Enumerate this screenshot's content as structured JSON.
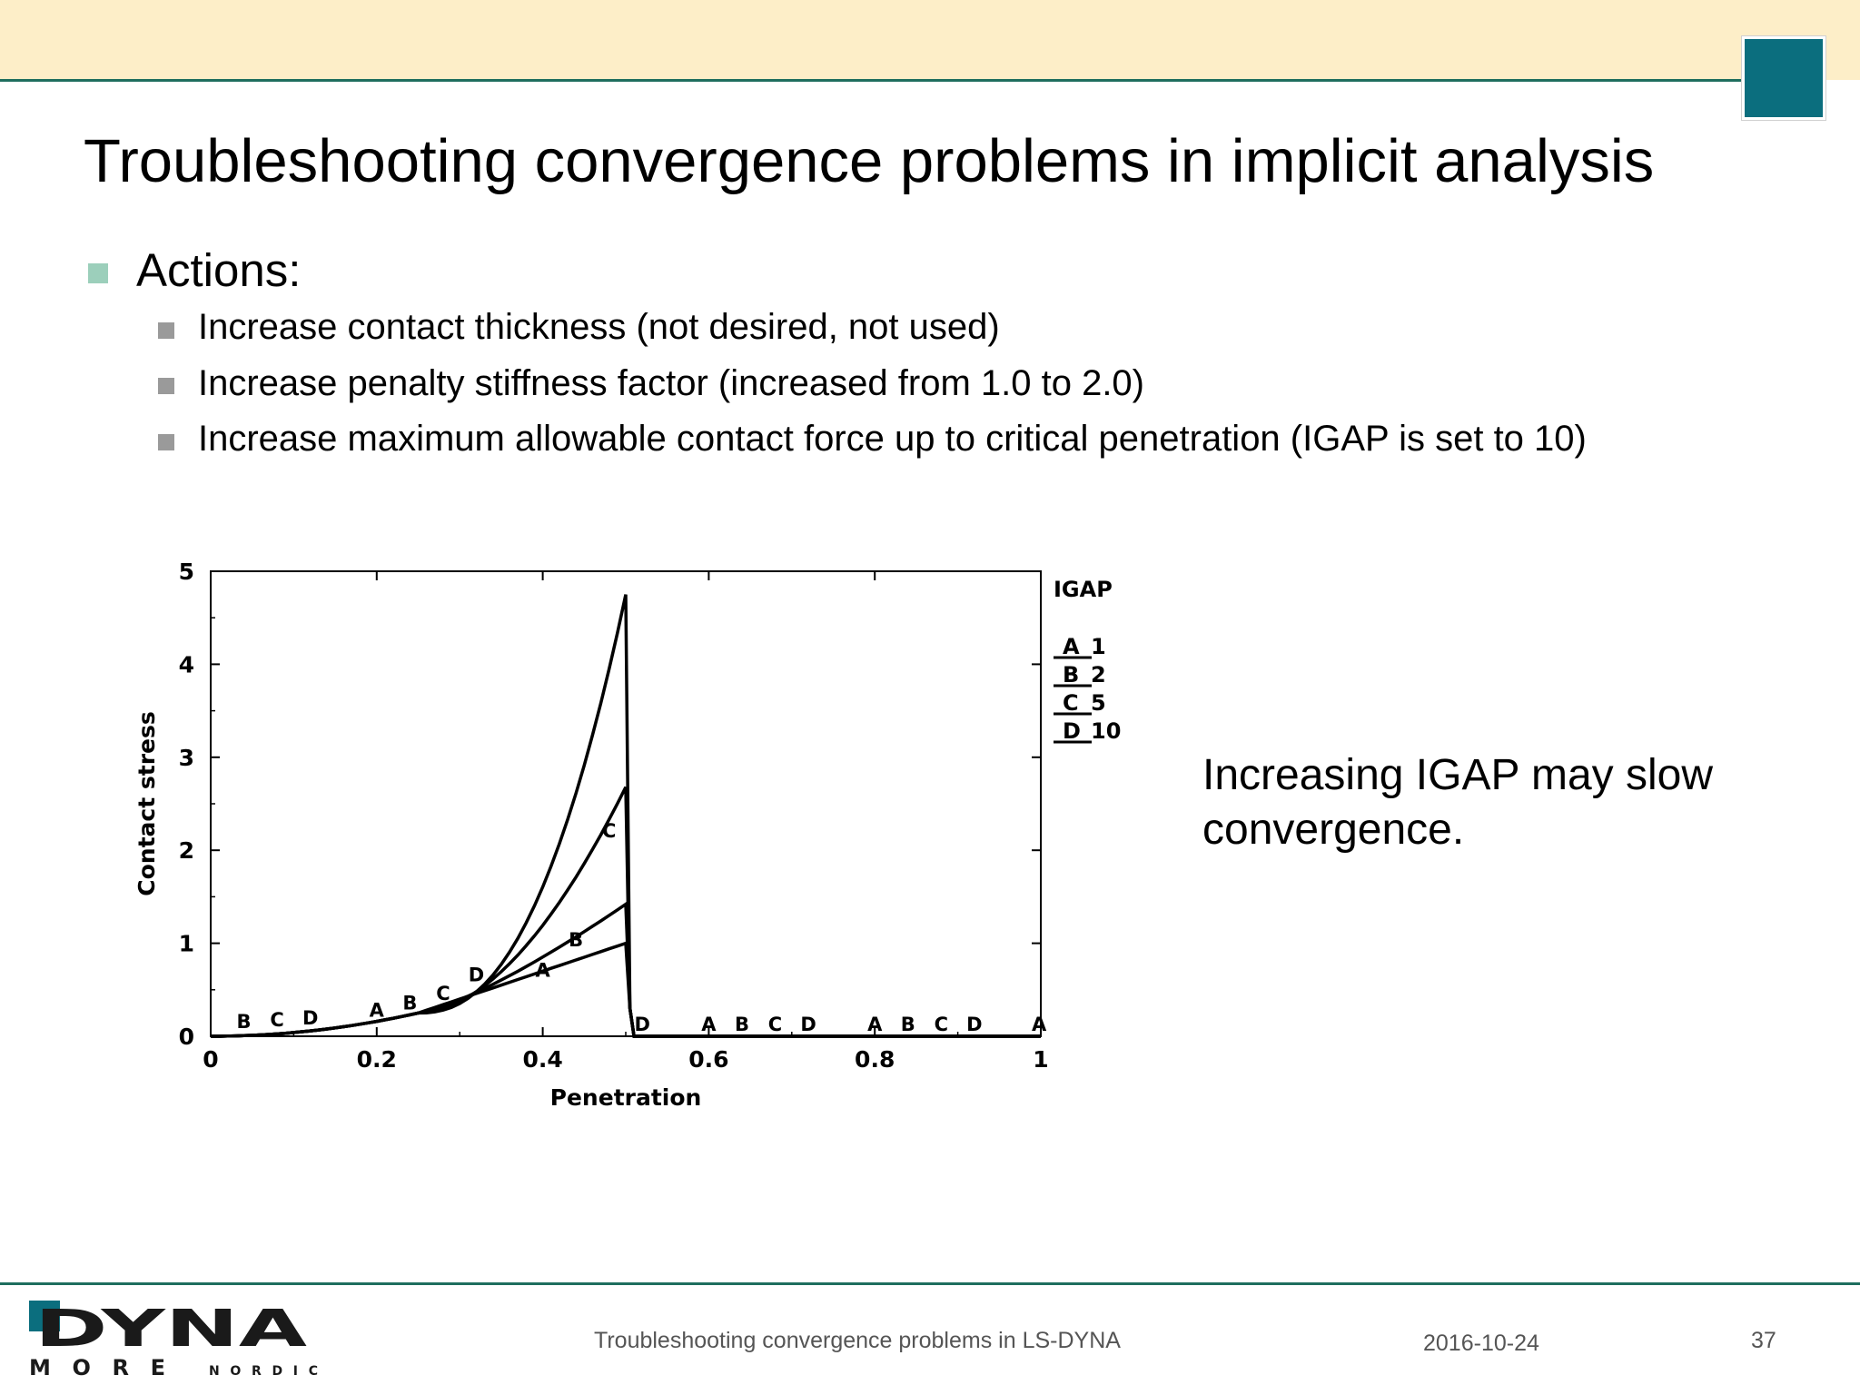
{
  "slide": {
    "title": "Troubleshooting convergence problems in implicit analysis",
    "bullet": "Actions:",
    "subbullets": [
      "Increase contact thickness (not desired, not used)",
      "Increase penalty stiffness factor (increased from 1.0 to 2.0)",
      "Increase maximum allowable contact force up to critical penetration (IGAP is set to 10)"
    ],
    "side_text": "Increasing IGAP may slow convergence."
  },
  "footer": {
    "center": "Troubleshooting convergence problems in LS-DYNA",
    "date": "2016-10-24",
    "page": "37",
    "logo_text": "DYNA MORE NORDIC"
  },
  "colors": {
    "top_band": "#fdeec8",
    "rule": "#1f6e5e",
    "corner_square": "#0b6e7e",
    "bullet_level1": "#9ccfbb",
    "bullet_level2": "#9a9a9a"
  },
  "chart_data": {
    "type": "line",
    "xlabel": "Penetration",
    "ylabel": "Contact stress",
    "xlim": [
      0,
      1
    ],
    "ylim": [
      0,
      5
    ],
    "x_ticks": [
      "0",
      "0.2",
      "0.4",
      "0.6",
      "0.8",
      "1"
    ],
    "y_ticks": [
      "0",
      "1",
      "2",
      "3",
      "4",
      "5"
    ],
    "legend": {
      "title": "IGAP",
      "placement": "right",
      "entries": [
        {
          "marker": "A",
          "label": "1"
        },
        {
          "marker": "B",
          "label": "2"
        },
        {
          "marker": "C",
          "label": "5"
        },
        {
          "marker": "D",
          "label": "10"
        }
      ]
    },
    "series": [
      {
        "marker": "A",
        "peak": 1.0,
        "x": [
          0,
          0.1,
          0.2,
          0.3,
          0.4,
          0.5,
          0.51,
          1.0
        ],
        "y": [
          0,
          0.04,
          0.16,
          0.36,
          0.64,
          1.0,
          0,
          0
        ]
      },
      {
        "marker": "B",
        "peak": 1.42,
        "x": [
          0,
          0.1,
          0.2,
          0.3,
          0.4,
          0.5,
          0.51,
          1.0
        ],
        "y": [
          0,
          0.04,
          0.16,
          0.37,
          0.78,
          1.42,
          0,
          0
        ]
      },
      {
        "marker": "C",
        "peak": 2.68,
        "x": [
          0,
          0.1,
          0.2,
          0.3,
          0.4,
          0.5,
          0.51,
          1.0
        ],
        "y": [
          0,
          0.04,
          0.16,
          0.4,
          1.15,
          2.68,
          0,
          0
        ]
      },
      {
        "marker": "D",
        "peak": 4.75,
        "x": [
          0,
          0.1,
          0.2,
          0.3,
          0.4,
          0.5,
          0.51,
          1.0
        ],
        "y": [
          0,
          0.04,
          0.16,
          0.43,
          1.6,
          4.75,
          0,
          0
        ]
      }
    ],
    "markers": [
      {
        "t": "B",
        "x": 0.04,
        "y": 0.05
      },
      {
        "t": "C",
        "x": 0.08,
        "y": 0.07
      },
      {
        "t": "D",
        "x": 0.12,
        "y": 0.09
      },
      {
        "t": "A",
        "x": 0.2,
        "y": 0.17
      },
      {
        "t": "B",
        "x": 0.24,
        "y": 0.25
      },
      {
        "t": "C",
        "x": 0.28,
        "y": 0.35
      },
      {
        "t": "D",
        "x": 0.32,
        "y": 0.55
      },
      {
        "t": "A",
        "x": 0.4,
        "y": 0.6
      },
      {
        "t": "B",
        "x": 0.44,
        "y": 0.93
      },
      {
        "t": "C",
        "x": 0.48,
        "y": 2.1
      },
      {
        "t": "D",
        "x": 0.52,
        "y": 0.02
      },
      {
        "t": "A",
        "x": 0.6,
        "y": 0.02
      },
      {
        "t": "B",
        "x": 0.64,
        "y": 0.02
      },
      {
        "t": "C",
        "x": 0.68,
        "y": 0.02
      },
      {
        "t": "D",
        "x": 0.72,
        "y": 0.02
      },
      {
        "t": "A",
        "x": 0.8,
        "y": 0.02
      },
      {
        "t": "B",
        "x": 0.84,
        "y": 0.02
      },
      {
        "t": "C",
        "x": 0.88,
        "y": 0.02
      },
      {
        "t": "D",
        "x": 0.92,
        "y": 0.02
      },
      {
        "t": "A",
        "x": 0.998,
        "y": 0.02
      }
    ],
    "grid": false
  }
}
